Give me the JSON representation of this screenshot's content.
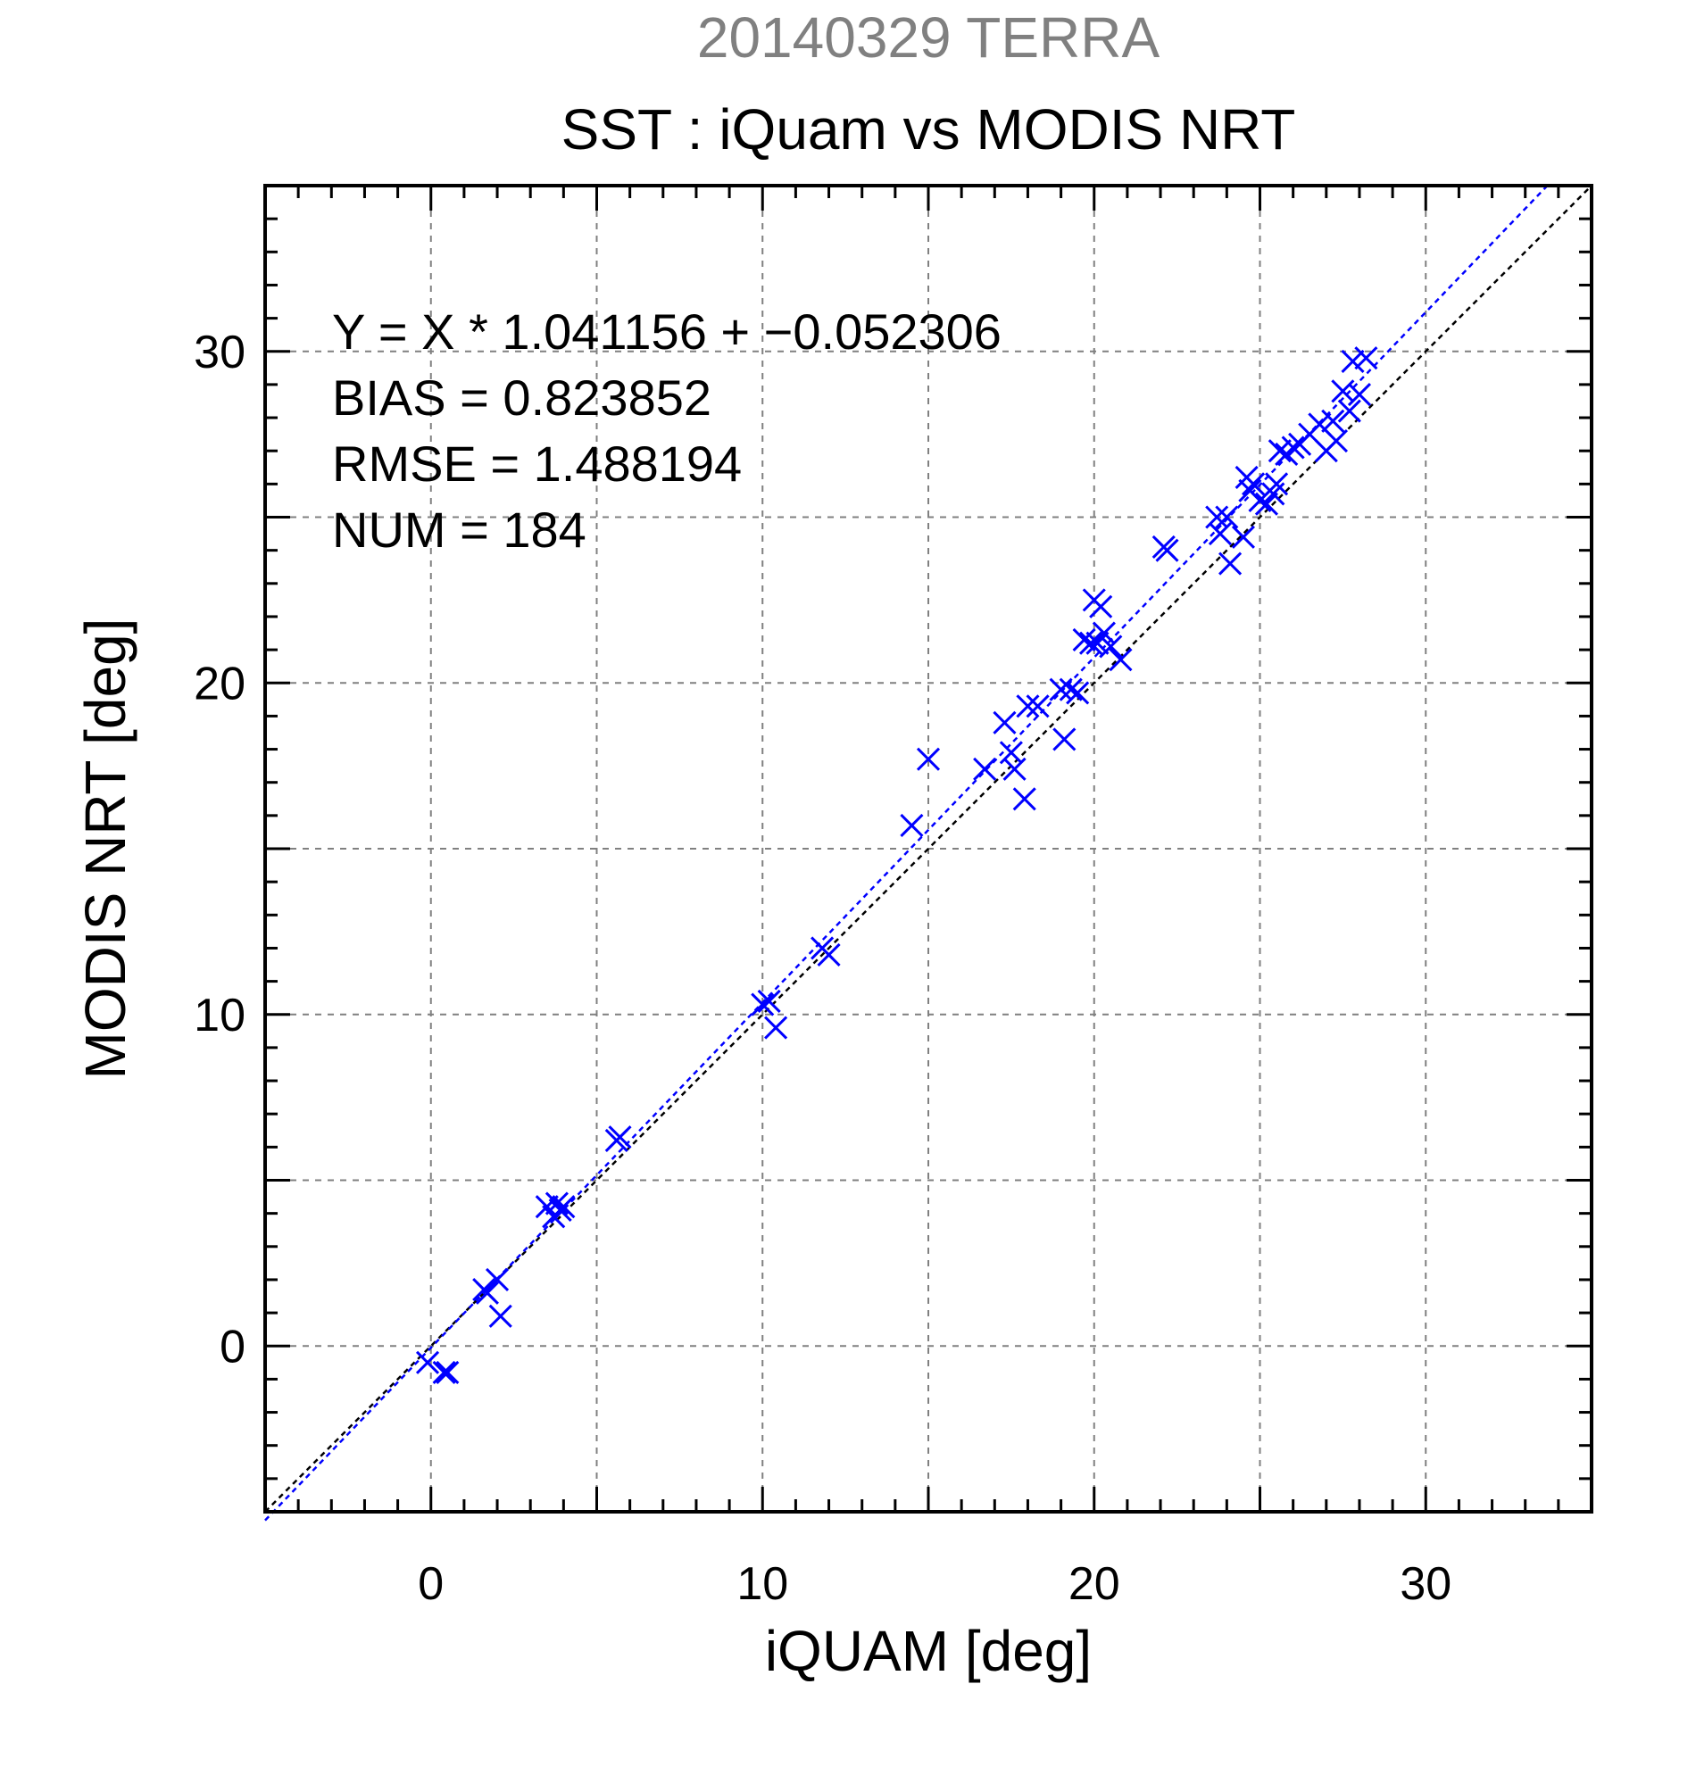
{
  "chart_data": {
    "type": "scatter",
    "suptitle": "20140329 TERRA",
    "title": "SST : iQuam vs MODIS NRT",
    "xlabel": "iQUAM [deg]",
    "ylabel": "MODIS NRT [deg]",
    "xlim": [
      -5,
      35
    ],
    "ylim": [
      -5,
      35
    ],
    "xticks": [
      0,
      10,
      20,
      30
    ],
    "yticks": [
      0,
      10,
      20,
      30
    ],
    "grid": true,
    "grid_step": 5,
    "colors": {
      "points": "#0000ff",
      "fit_line": "#0000ff",
      "identity_line": "#000000",
      "grid": "#808080",
      "suptitle": "#808080"
    },
    "stats": [
      "Y = X * 1.041156 + −0.052306",
      "BIAS = 0.823852",
      "RMSE = 1.488194",
      "NUM = 184"
    ],
    "fit": {
      "slope": 1.041156,
      "intercept": -0.052306
    },
    "series": [
      {
        "marker": "x",
        "x": [
          -0.1,
          0.4,
          0.5,
          1.6,
          1.7,
          2.0,
          2.1,
          3.5,
          3.7,
          3.8,
          3.9,
          4.0,
          5.6,
          5.7,
          10.0,
          10.2,
          10.4,
          11.8,
          12.0,
          14.5,
          15.0,
          16.7,
          17.3,
          17.5,
          17.6,
          17.9,
          18.0,
          18.3,
          19.0,
          19.1,
          19.3,
          19.5,
          19.7,
          19.9,
          20.0,
          20.1,
          20.2,
          20.3,
          20.5,
          20.8,
          22.1,
          22.2,
          23.7,
          23.8,
          24.0,
          24.1,
          24.5,
          24.6,
          24.7,
          24.8,
          25.0,
          25.2,
          25.4,
          25.5,
          25.6,
          25.8,
          26.0,
          26.2,
          26.5,
          26.8,
          27.0,
          27.2,
          27.3,
          27.5,
          27.7,
          27.8,
          28.0,
          28.2
        ],
        "y": [
          -0.5,
          -0.8,
          -0.8,
          1.7,
          1.6,
          2.0,
          0.9,
          4.2,
          3.9,
          4.3,
          4.1,
          4.2,
          6.2,
          6.3,
          10.3,
          10.4,
          9.6,
          12.0,
          11.8,
          15.7,
          17.7,
          17.4,
          18.8,
          17.9,
          17.4,
          16.5,
          19.3,
          19.3,
          19.8,
          18.3,
          19.8,
          19.7,
          21.3,
          21.2,
          22.5,
          21.2,
          22.3,
          21.5,
          21.1,
          20.7,
          24.1,
          24.0,
          25.0,
          24.5,
          25.0,
          23.6,
          24.4,
          26.2,
          25.8,
          26.0,
          25.5,
          25.4,
          25.7,
          26.0,
          27.0,
          26.9,
          27.1,
          27.2,
          27.5,
          27.8,
          27.0,
          27.9,
          27.3,
          28.8,
          28.2,
          29.7,
          28.7,
          29.8
        ]
      }
    ]
  }
}
